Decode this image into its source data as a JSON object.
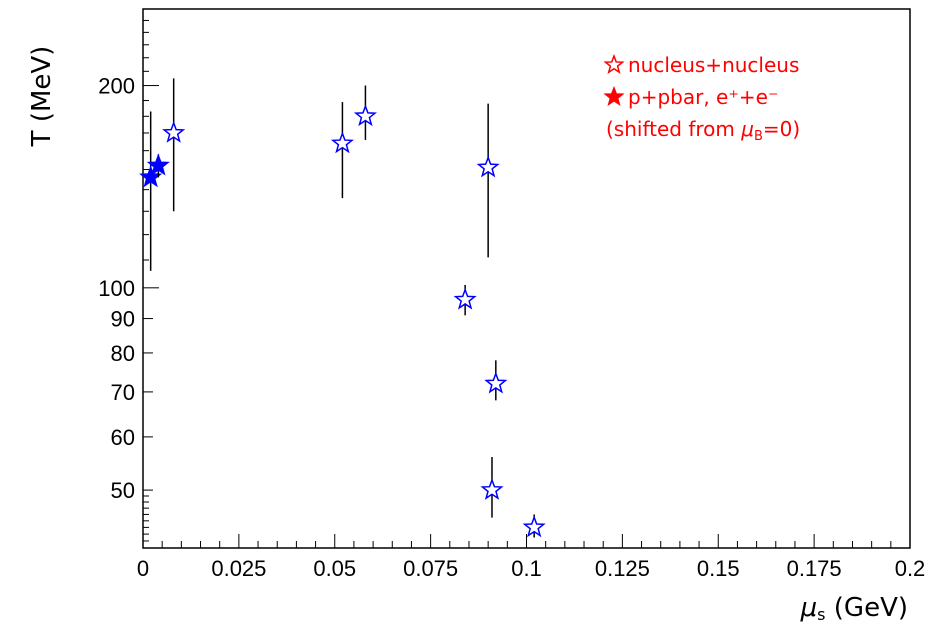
{
  "chart_data": {
    "type": "scatter",
    "xlabel": "μ_s (GeV)",
    "ylabel": "T (MeV)",
    "xlim": [
      0,
      0.2
    ],
    "ylim": [
      41,
      260
    ],
    "y_scale": "log",
    "grid": false,
    "legend_position": "top-right",
    "x_ticks": [
      {
        "value": 0,
        "label": "0"
      },
      {
        "value": 0.025,
        "label": "0.025"
      },
      {
        "value": 0.05,
        "label": "0.05"
      },
      {
        "value": 0.075,
        "label": "0.075"
      },
      {
        "value": 0.1,
        "label": "0.1"
      },
      {
        "value": 0.125,
        "label": "0.125"
      },
      {
        "value": 0.15,
        "label": "0.15"
      },
      {
        "value": 0.175,
        "label": "0.175"
      },
      {
        "value": 0.2,
        "label": "0.2"
      }
    ],
    "y_ticks": [
      {
        "value": 50,
        "label": "50"
      },
      {
        "value": 60,
        "label": "60"
      },
      {
        "value": 70,
        "label": "70"
      },
      {
        "value": 80,
        "label": "80"
      },
      {
        "value": 90,
        "label": "90"
      },
      {
        "value": 100,
        "label": "100"
      },
      {
        "value": 200,
        "label": "200"
      }
    ],
    "marker_color": "#0000ff",
    "errorbar_color": "#000000",
    "series": [
      {
        "name": "nucleus+nucleus",
        "marker": "open-star",
        "points": [
          {
            "x": 0.008,
            "y": 170,
            "y_lo": 130,
            "y_hi": 205
          },
          {
            "x": 0.052,
            "y": 164,
            "y_lo": 136,
            "y_hi": 189
          },
          {
            "x": 0.058,
            "y": 180,
            "y_lo": 166,
            "y_hi": 200
          },
          {
            "x": 0.09,
            "y": 151,
            "y_lo": 111,
            "y_hi": 188
          },
          {
            "x": 0.084,
            "y": 96,
            "y_lo": 91,
            "y_hi": 101
          },
          {
            "x": 0.092,
            "y": 72,
            "y_lo": 68,
            "y_hi": 78
          },
          {
            "x": 0.091,
            "y": 50,
            "y_lo": 45.5,
            "y_hi": 56
          },
          {
            "x": 0.102,
            "y": 44,
            "y_lo": 42.5,
            "y_hi": 46
          }
        ]
      },
      {
        "name": "p+pbar, e⁺+e⁻",
        "marker": "filled-star",
        "points": [
          {
            "x": 0.002,
            "y": 146,
            "y_lo": 106,
            "y_hi": 183
          },
          {
            "x": 0.004,
            "y": 152,
            "y_lo": 146,
            "y_hi": 158
          }
        ]
      }
    ],
    "legend": {
      "color": "#ff0000",
      "entries": [
        {
          "marker": "open-star",
          "text": "nucleus+nucleus"
        },
        {
          "marker": "filled-star",
          "text": "p+pbar, e⁺+e⁻"
        },
        {
          "marker": "none",
          "text": "(shifted from μ_B=0)"
        }
      ]
    }
  }
}
